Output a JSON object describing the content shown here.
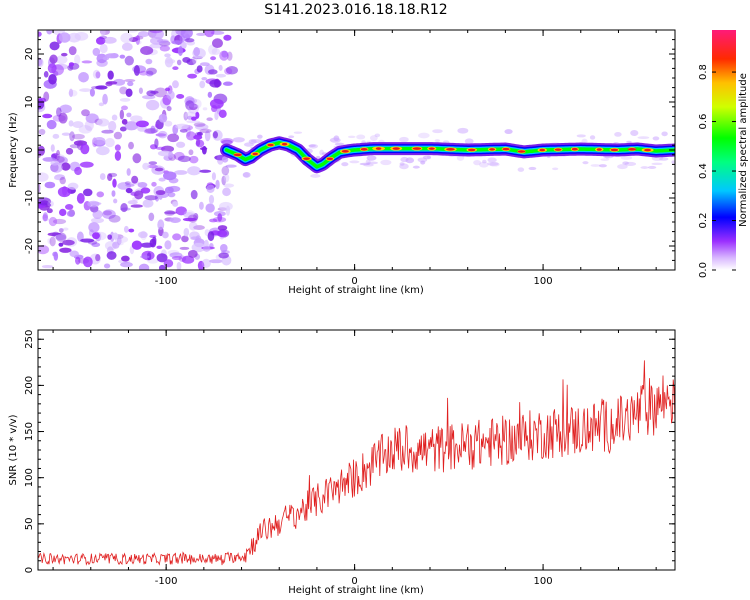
{
  "title": "S141.2023.016.18.18.R12",
  "chart_data": [
    {
      "type": "heatmap",
      "xlabel": "Height of straight line (km)",
      "ylabel": "Frequency (Hz)",
      "xlim": [
        -168,
        170
      ],
      "ylim": [
        -25,
        25
      ],
      "xticks": [
        -100,
        0,
        100
      ],
      "yticks": [
        -20,
        -10,
        0,
        10,
        20
      ],
      "noise_region_x": [
        -168,
        -65
      ],
      "ridge": {
        "x": [
          -68,
          -62,
          -58,
          -55,
          -50,
          -45,
          -40,
          -35,
          -30,
          -25,
          -20,
          -17,
          -12,
          -8,
          -4,
          0,
          10,
          20,
          40,
          60,
          80,
          90,
          100,
          120,
          140,
          150,
          160,
          170
        ],
        "y": [
          0,
          -1,
          -2,
          -1.5,
          0,
          1,
          1.5,
          1,
          0,
          -2,
          -3.5,
          -3,
          -1.5,
          -0.5,
          -0.2,
          0,
          0.3,
          0.3,
          0.3,
          0,
          0.2,
          -0.4,
          0,
          0.2,
          0,
          0.2,
          -0.2,
          0
        ]
      },
      "colorbar": {
        "label": "Normalized spectral amplitude",
        "ticks": [
          "0.0",
          "0.2",
          "0.4",
          "0.6",
          "0.8"
        ],
        "range": [
          0,
          0.97
        ]
      },
      "colors": {
        "noise": "#8a2be2",
        "ridge_peak": "#e8191d"
      }
    },
    {
      "type": "line",
      "xlabel": "Height of straight line (km)",
      "ylabel": "SNR (10 * v/v)",
      "xlim": [
        -168,
        170
      ],
      "ylim": [
        0,
        260
      ],
      "xticks": [
        -100,
        0,
        100
      ],
      "yticks": [
        0,
        50,
        100,
        150,
        200,
        250
      ],
      "trend": {
        "x": [
          -168,
          -140,
          -100,
          -70,
          -58,
          -50,
          -40,
          -30,
          -20,
          -10,
          0,
          10,
          20,
          40,
          60,
          80,
          100,
          120,
          140,
          155,
          165,
          170
        ],
        "y": [
          12,
          12,
          12,
          12,
          16,
          40,
          52,
          62,
          75,
          88,
          100,
          115,
          130,
          130,
          135,
          140,
          148,
          152,
          158,
          175,
          185,
          190
        ]
      },
      "color": "#e02020"
    }
  ]
}
